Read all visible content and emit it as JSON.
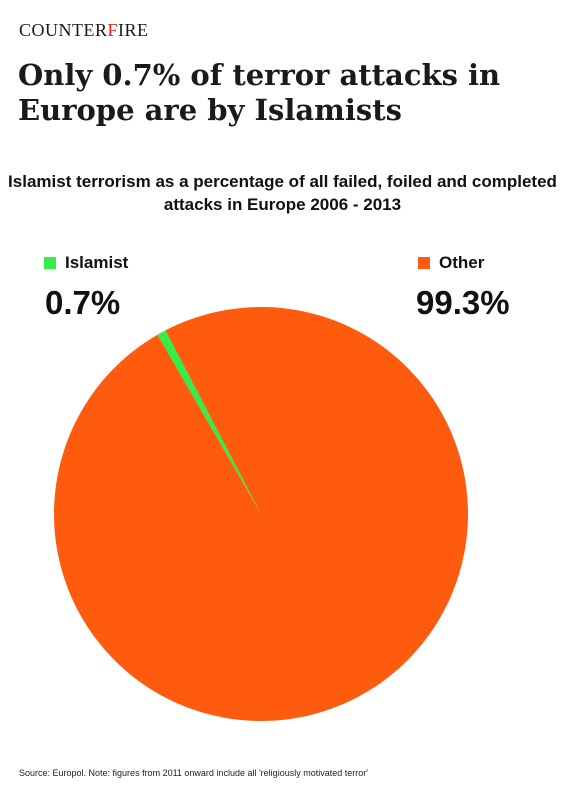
{
  "brand": {
    "prefix": "COUNTER",
    "accent": "F",
    "suffix": "IRE"
  },
  "headline": "Only 0.7% of terror attacks in Europe are by Islamists",
  "colors": {
    "islamist": "#33ee44",
    "other": "#ff5b0f",
    "brand_accent": "#d81e1e"
  },
  "chart_data": {
    "type": "pie",
    "title": "Islamist terrorism as a percentage of all failed, foiled and completed attacks in Europe 2006 - 2013",
    "slices": [
      {
        "label": "Islamist",
        "value": 0.7,
        "display": "0.7%",
        "color": "#33ee44"
      },
      {
        "label": "Other",
        "value": 99.3,
        "display": "99.3%",
        "color": "#ff5b0f"
      }
    ],
    "legend_position": "top"
  },
  "source_note": "Source: Europol. Note: figures from 2011 onward include all 'religiously motivated terror'"
}
